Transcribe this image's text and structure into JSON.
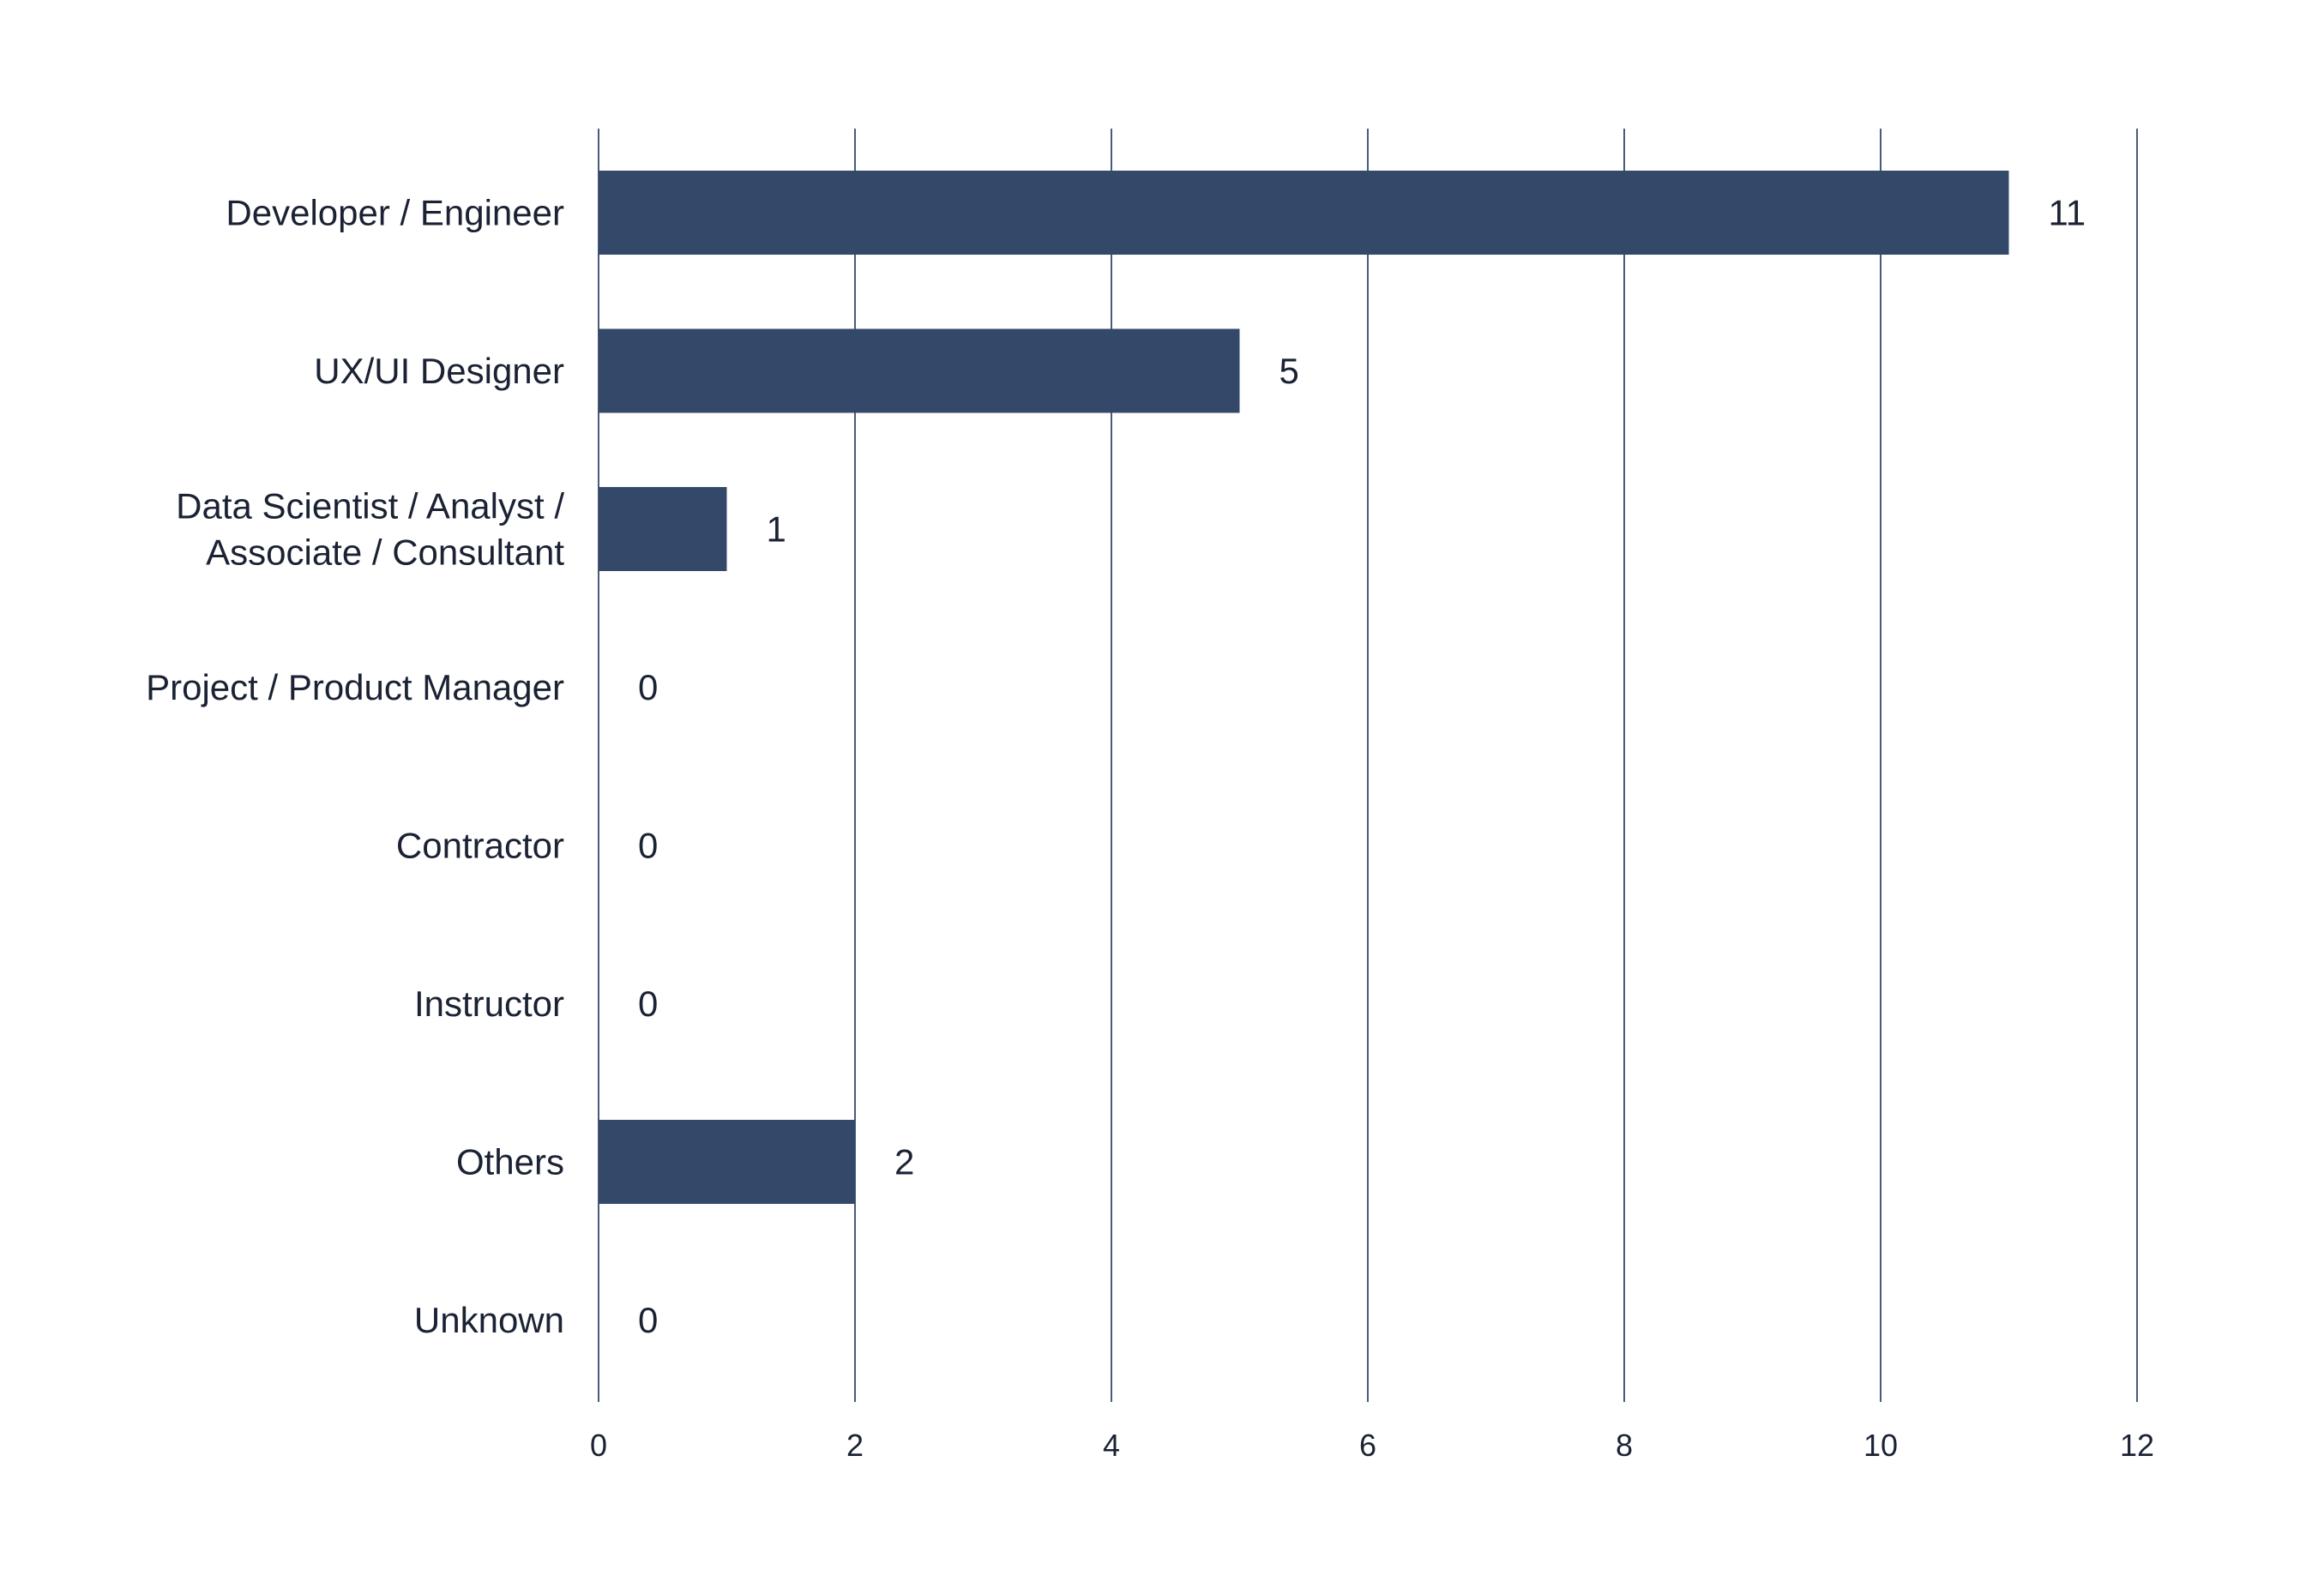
{
  "chart_data": {
    "type": "bar",
    "orientation": "horizontal",
    "categories": [
      [
        "Developer / Engineer"
      ],
      [
        "UX/UI Designer"
      ],
      [
        "Data Scientist / Analyst /",
        "Associate / Consultant"
      ],
      [
        "Project / Product Manager"
      ],
      [
        "Contractor"
      ],
      [
        "Instructor"
      ],
      [
        "Others"
      ],
      [
        "Unknown"
      ]
    ],
    "values": [
      11,
      5,
      1,
      0,
      0,
      0,
      2,
      0
    ],
    "data_labels": [
      "11",
      "5",
      "1",
      "0",
      "0",
      "0",
      "2",
      "0"
    ],
    "xlim": [
      0,
      12
    ],
    "x_ticks": [
      0,
      2,
      4,
      6,
      8,
      10,
      12
    ],
    "grid": "vertical",
    "bar_color": "#344869",
    "grid_color": "#4a5a78",
    "text_color": "#1a2233",
    "title": "",
    "xlabel": "",
    "ylabel": ""
  }
}
